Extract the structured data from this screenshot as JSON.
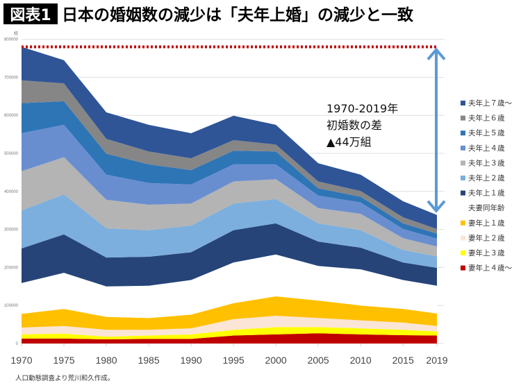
{
  "header": {
    "badge": "図表1",
    "title": "日本の婚姻数の減少は「夫年上婚」の減少と一致"
  },
  "source_note": "人口動態調査より荒川和久作成。",
  "chart_data": {
    "type": "area",
    "stacked": true,
    "title": "日本の婚姻数の減少は「夫年上婚」の減少と一致",
    "ylabel": "組",
    "xlabel": "",
    "ylim": [
      0,
      800000
    ],
    "yticks": [
      "0",
      "100000",
      "200000",
      "300000",
      "400000",
      "500000",
      "600000",
      "700000",
      "800000"
    ],
    "grid": true,
    "legend_position": "right",
    "categories": [
      "1970",
      "1975",
      "1980",
      "1985",
      "1990",
      "1995",
      "2000",
      "2005",
      "2010",
      "2015",
      "2019"
    ],
    "series": [
      {
        "name": "妻年上４歳〜",
        "color": "#c00000",
        "values": [
          13000,
          13000,
          11000,
          12000,
          12000,
          21000,
          24000,
          27000,
          24000,
          22000,
          21000
        ]
      },
      {
        "name": "妻年上３歳",
        "color": "#ffff00",
        "values": [
          11000,
          13000,
          7000,
          9000,
          12000,
          15000,
          19000,
          16000,
          16000,
          14000,
          11000
        ]
      },
      {
        "name": "妻年上２歳",
        "color": "#fbe5d6",
        "values": [
          18000,
          20000,
          18000,
          15000,
          16000,
          28000,
          30000,
          24000,
          21000,
          19000,
          14000
        ]
      },
      {
        "name": "妻年上１歳",
        "color": "#ffc000",
        "values": [
          36000,
          45000,
          34000,
          31000,
          36000,
          42000,
          51000,
          46000,
          39000,
          36000,
          33000
        ]
      },
      {
        "name": "夫妻同年齢",
        "color": "#ffffff",
        "values": [
          81000,
          95000,
          80000,
          85000,
          91000,
          107000,
          110000,
          91000,
          95000,
          76000,
          73000
        ]
      },
      {
        "name": "夫年上１歳",
        "color": "#264478",
        "values": [
          91000,
          101000,
          76000,
          76000,
          73000,
          85000,
          82000,
          64000,
          57000,
          46000,
          47000
        ]
      },
      {
        "name": "夫年上２歳",
        "color": "#7cafdd",
        "values": [
          100000,
          105000,
          77000,
          70000,
          70000,
          70000,
          64000,
          48000,
          46000,
          33000,
          30000
        ]
      },
      {
        "name": "夫年上３歳",
        "color": "#b4b4b4",
        "values": [
          103000,
          98000,
          75000,
          67000,
          58000,
          58000,
          52000,
          40000,
          43000,
          31000,
          26000
        ]
      },
      {
        "name": "夫年上４歳",
        "color": "#698ed0",
        "values": [
          100000,
          85000,
          66000,
          57000,
          50000,
          45000,
          39000,
          33000,
          30000,
          24000,
          21000
        ]
      },
      {
        "name": "夫年上５歳",
        "color": "#2e75b6",
        "values": [
          79000,
          62000,
          55000,
          49000,
          38000,
          36000,
          34000,
          19000,
          15000,
          15000,
          13000
        ]
      },
      {
        "name": "夫年上６歳",
        "color": "#868686",
        "values": [
          60000,
          47000,
          39000,
          34000,
          31000,
          28000,
          18000,
          18000,
          15000,
          16000,
          12000
        ]
      },
      {
        "name": "夫年上７歳〜",
        "color": "#2f5597",
        "values": [
          88000,
          61000,
          70000,
          70000,
          66000,
          64000,
          52000,
          48000,
          43000,
          42000,
          37000
        ]
      }
    ],
    "reference_line": {
      "value": 780000,
      "from": "1970",
      "to": "2019",
      "color": "#c00000",
      "style": "dotted"
    },
    "arrow": {
      "from_value": 780000,
      "to_value": 338000,
      "color": "#5b9bd5"
    },
    "annotation": [
      "1970-2019年",
      "初婚数の差",
      "▲44万組"
    ]
  }
}
